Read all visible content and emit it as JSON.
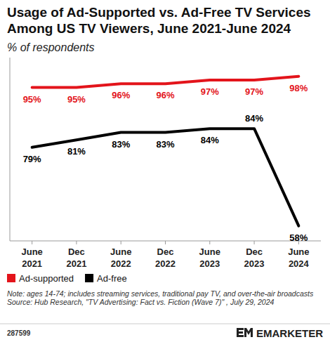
{
  "chart_data": {
    "type": "line",
    "title": "Usage of Ad-Supported vs. Ad-Free TV Services Among US TV Viewers, June 2021-June 2024",
    "subtitle": "% of respondents",
    "categories": [
      "June 2021",
      "Dec 2021",
      "June 2022",
      "Dec 2022",
      "June 2023",
      "Dec 2023",
      "June 2024"
    ],
    "series": [
      {
        "name": "Ad-supported",
        "color": "#e3141b",
        "values": [
          95,
          95,
          96,
          96,
          97,
          97,
          98
        ],
        "value_labels": [
          "95%",
          "95%",
          "96%",
          "96%",
          "97%",
          "97%",
          "98%"
        ]
      },
      {
        "name": "Ad-free",
        "color": "#000000",
        "values": [
          79,
          81,
          83,
          83,
          84,
          84,
          58
        ],
        "value_labels": [
          "79%",
          "81%",
          "83%",
          "83%",
          "84%",
          "84%",
          "58%"
        ]
      }
    ],
    "ylim": [
      54,
      103
    ],
    "tick_labels": "x",
    "data_labels": true,
    "legend": "bottom-left",
    "line_style": "solid",
    "note": "Note: ages 14-74; includes streaming services, traditional pay TV, and over-the-air broadcasts",
    "source": "Source: Hub Research, \"TV Advertising: Fact vs. Fiction (Wave 7)\" , July 29, 2024",
    "chart_id": "287599",
    "brand": "EMARKETER"
  }
}
